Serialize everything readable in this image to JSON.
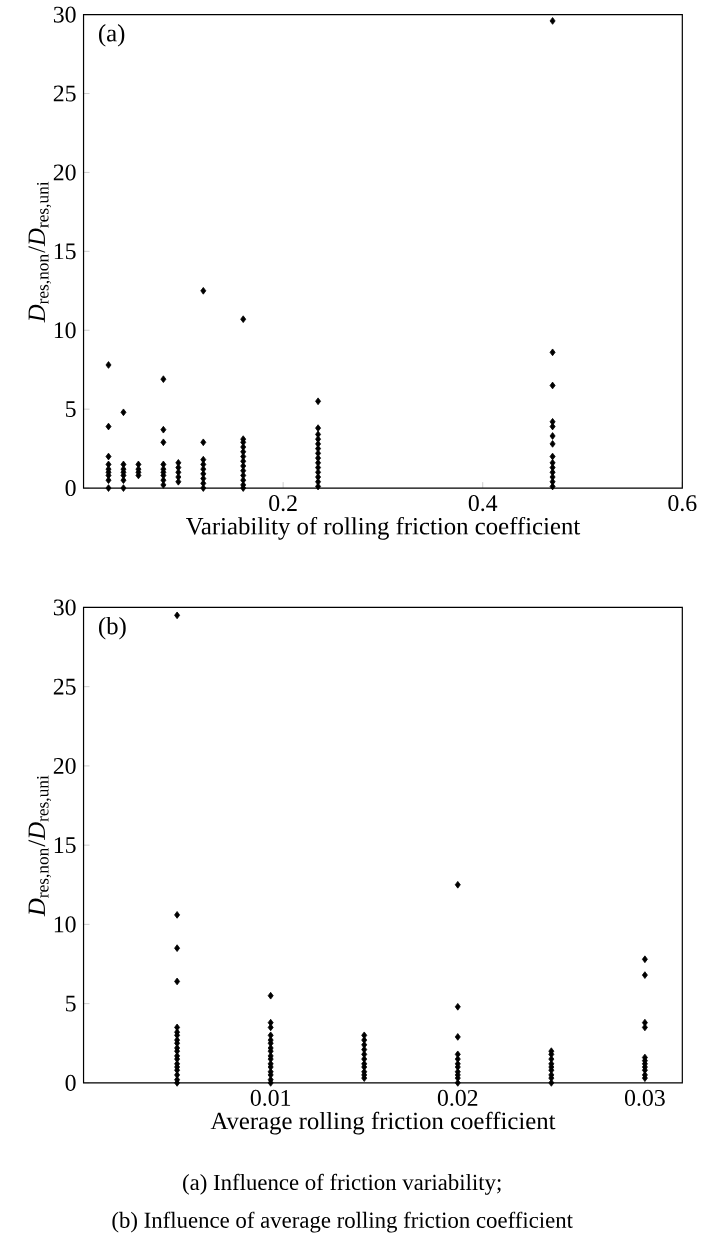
{
  "chart_data": [
    {
      "type": "scatter",
      "xlabel": "Variability of rolling friction coefficient",
      "ylabel": "*D*$_{res,non}$/*D*$_{res,uni}$",
      "xlim": [
        0,
        0.6
      ],
      "xticks": [
        0.2,
        0.4,
        0.6
      ],
      "ylim": [
        0,
        30
      ],
      "yticks": [
        0,
        5,
        10,
        15,
        20,
        25,
        30
      ],
      "marker": "diamond",
      "grid": false,
      "annotations": [
        "(a)",
        "(a)  Influence  of  friction  variability;"
      ],
      "series": [
        {
          "color": "#000000",
          "x": [
            0.025,
            0.025,
            0.025,
            0.025,
            0.025,
            0.025,
            0.025,
            0.025,
            0.025,
            0.04,
            0.04,
            0.04,
            0.04,
            0.04,
            0.04,
            0.04,
            0.055,
            0.055,
            0.055,
            0.055,
            0.08,
            0.08,
            0.08,
            0.08,
            0.08,
            0.08,
            0.08,
            0.08,
            0.08,
            0.095,
            0.095,
            0.095,
            0.095,
            0.095,
            0.12,
            0.12,
            0.12,
            0.12,
            0.12,
            0.12,
            0.12,
            0.12,
            0.12,
            0.16,
            0.16,
            0.16,
            0.16,
            0.16,
            0.16,
            0.16,
            0.16,
            0.16,
            0.16,
            0.16,
            0.16,
            0.16,
            0.235,
            0.235,
            0.235,
            0.235,
            0.235,
            0.235,
            0.235,
            0.235,
            0.235,
            0.235,
            0.235,
            0.235,
            0.235,
            0.235,
            0.47,
            0.47,
            0.47,
            0.47,
            0.47,
            0.47,
            0.47,
            0.47,
            0.47,
            0.47,
            0.47,
            0.47,
            0.47,
            0.47
          ],
          "values": [
            7.8,
            3.9,
            2.0,
            1.5,
            1.2,
            1.0,
            0.8,
            0.5,
            0,
            4.8,
            1.5,
            1.2,
            1.0,
            0.8,
            0.5,
            0,
            1.5,
            1.2,
            1.0,
            0.8,
            6.9,
            3.7,
            2.9,
            1.5,
            1.2,
            1.0,
            0.8,
            0.5,
            0.2,
            1.6,
            1.3,
            1.0,
            0.7,
            0.4,
            12.5,
            2.9,
            1.8,
            1.5,
            1.2,
            0.9,
            0.6,
            0.3,
            0,
            10.7,
            3.1,
            2.9,
            2.6,
            2.3,
            2.0,
            1.7,
            1.4,
            1.1,
            0.8,
            0.5,
            0.2,
            0,
            5.5,
            3.8,
            3.4,
            3.1,
            2.8,
            2.5,
            2.2,
            1.9,
            1.6,
            1.3,
            1.0,
            0.7,
            0.4,
            0.1,
            29.6,
            8.6,
            6.5,
            4.2,
            3.9,
            3.3,
            2.8,
            2.0,
            1.6,
            1.3,
            1.0,
            0.7,
            0.4,
            0.1
          ]
        }
      ]
    },
    {
      "type": "scatter",
      "xlabel": "Average rolling friction coefficient",
      "ylabel": "*D*$_{res,non}$/*D*$_{res,uni}$",
      "xlim": [
        0,
        0.032
      ],
      "xticks": [
        0.01,
        0.02,
        0.03
      ],
      "ylim": [
        0,
        30
      ],
      "yticks": [
        0,
        5,
        10,
        15,
        20,
        25,
        30
      ],
      "marker": "diamond",
      "grid": false,
      "annotations": [
        "(b)",
        "(b) Influence of average rolling friction coefficient"
      ],
      "series": [
        {
          "color": "#000000",
          "x": [
            0.005,
            0.005,
            0.005,
            0.005,
            0.005,
            0.005,
            0.005,
            0.005,
            0.005,
            0.005,
            0.005,
            0.005,
            0.005,
            0.005,
            0.005,
            0.005,
            0.005,
            0.005,
            0.005,
            0.01,
            0.01,
            0.01,
            0.01,
            0.01,
            0.01,
            0.01,
            0.01,
            0.01,
            0.01,
            0.01,
            0.01,
            0.01,
            0.01,
            0.01,
            0.01,
            0.015,
            0.015,
            0.015,
            0.015,
            0.015,
            0.015,
            0.015,
            0.015,
            0.015,
            0.015,
            0.015,
            0.02,
            0.02,
            0.02,
            0.02,
            0.02,
            0.02,
            0.02,
            0.02,
            0.02,
            0.02,
            0.02,
            0.025,
            0.025,
            0.025,
            0.025,
            0.025,
            0.025,
            0.025,
            0.025,
            0.025,
            0.03,
            0.03,
            0.03,
            0.03,
            0.03,
            0.03,
            0.03,
            0.03,
            0.03,
            0.03,
            0.03
          ],
          "values": [
            29.5,
            10.6,
            8.5,
            6.4,
            3.5,
            3.2,
            3.0,
            2.7,
            2.5,
            2.2,
            2.0,
            1.7,
            1.5,
            1.2,
            1.0,
            0.8,
            0.5,
            0.2,
            0,
            5.5,
            3.8,
            3.5,
            3.0,
            2.7,
            2.5,
            2.2,
            2.0,
            1.7,
            1.5,
            1.2,
            1.0,
            0.7,
            0.5,
            0.2,
            0,
            3.0,
            2.7,
            2.4,
            2.1,
            1.8,
            1.5,
            1.2,
            1.0,
            0.7,
            0.5,
            0.3,
            12.5,
            4.8,
            2.9,
            1.8,
            1.5,
            1.2,
            1.0,
            0.7,
            0.5,
            0.3,
            0,
            2.0,
            1.8,
            1.5,
            1.2,
            1.0,
            0.8,
            0.5,
            0.3,
            0,
            7.8,
            6.8,
            3.8,
            3.5,
            1.6,
            1.4,
            1.2,
            1.0,
            0.8,
            0.5,
            0.3
          ]
        }
      ]
    }
  ]
}
